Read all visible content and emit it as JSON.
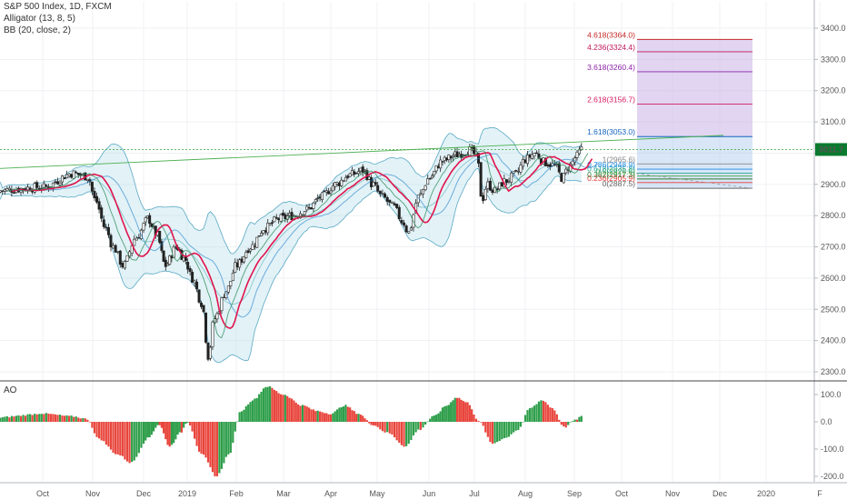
{
  "legend": {
    "symbol": "S&P 500 Index, 1D, FXCM",
    "alligator": "Alligator (13, 8, 5)",
    "bb": "BB (20, close, 2)",
    "ao": "AO"
  },
  "colors": {
    "up": "#26a69a",
    "down": "#ef5350",
    "candle_up": "#2a2a2a",
    "candle_down": "#2a2a2a",
    "bb_fill": "#bfe3ee",
    "bb_line": "#5aa9c4",
    "alligator_red": "#e0144c",
    "alligator_green": "#2e8b57",
    "ao_up": "#2e9e4a",
    "ao_down": "#e8453c",
    "price_line": "#4caf50",
    "price_label_bg": "#0a7a2e"
  },
  "chart_data": [
    {
      "type": "candlestick",
      "title": "S&P 500 Index, 1D, FXCM",
      "x_labels": [
        "Oct",
        "Nov",
        "Dec",
        "2019",
        "Feb",
        "Mar",
        "Apr",
        "May",
        "Jun",
        "Jul",
        "Aug",
        "Sep",
        "Oct",
        "Nov",
        "Dec",
        "2020",
        "F"
      ],
      "y_ticks": [
        "2300.0",
        "2400.0",
        "2500.0",
        "2600.0",
        "2700.0",
        "2800.0",
        "2900.0",
        "3000.0",
        "3100.0",
        "3200.0",
        "3300.0",
        "3400.0"
      ],
      "ylim": [
        2270,
        3440
      ],
      "last_price": "3011.7",
      "price_anchors": [
        {
          "month": 0.0,
          "close": 2890
        },
        {
          "month": 0.6,
          "close": 2935
        },
        {
          "month": 0.9,
          "close": 2925
        },
        {
          "month": 1.05,
          "close": 2850
        },
        {
          "month": 1.25,
          "close": 2760
        },
        {
          "month": 1.4,
          "close": 2700
        },
        {
          "month": 1.6,
          "close": 2640
        },
        {
          "month": 1.85,
          "close": 2730
        },
        {
          "month": 2.1,
          "close": 2790
        },
        {
          "month": 2.3,
          "close": 2740
        },
        {
          "month": 2.5,
          "close": 2640
        },
        {
          "month": 2.75,
          "close": 2700
        },
        {
          "month": 2.95,
          "close": 2660
        },
        {
          "month": 3.1,
          "close": 2600
        },
        {
          "month": 3.3,
          "close": 2520
        },
        {
          "month": 3.43,
          "close": 2350
        },
        {
          "month": 3.55,
          "close": 2470
        },
        {
          "month": 3.8,
          "close": 2560
        },
        {
          "month": 4.0,
          "close": 2640
        },
        {
          "month": 4.3,
          "close": 2700
        },
        {
          "month": 4.6,
          "close": 2760
        },
        {
          "month": 4.9,
          "close": 2790
        },
        {
          "month": 5.2,
          "close": 2800
        },
        {
          "month": 5.5,
          "close": 2820
        },
        {
          "month": 5.8,
          "close": 2860
        },
        {
          "month": 6.1,
          "close": 2900
        },
        {
          "month": 6.4,
          "close": 2930
        },
        {
          "month": 6.7,
          "close": 2945
        },
        {
          "month": 6.9,
          "close": 2900
        },
        {
          "month": 7.1,
          "close": 2860
        },
        {
          "month": 7.3,
          "close": 2830
        },
        {
          "month": 7.5,
          "close": 2780
        },
        {
          "month": 7.6,
          "close": 2745
        },
        {
          "month": 7.8,
          "close": 2860
        },
        {
          "month": 8.0,
          "close": 2920
        },
        {
          "month": 8.3,
          "close": 2975
        },
        {
          "month": 8.6,
          "close": 2995
        },
        {
          "month": 8.9,
          "close": 3010
        },
        {
          "month": 9.05,
          "close": 2990
        },
        {
          "month": 9.15,
          "close": 2850
        },
        {
          "month": 9.25,
          "close": 2900
        },
        {
          "month": 9.4,
          "close": 2880
        },
        {
          "month": 9.6,
          "close": 2910
        },
        {
          "month": 9.8,
          "close": 2930
        },
        {
          "month": 10.0,
          "close": 2980
        },
        {
          "month": 10.2,
          "close": 3000
        },
        {
          "month": 10.4,
          "close": 2970
        },
        {
          "month": 10.6,
          "close": 2960
        },
        {
          "month": 10.75,
          "close": 2920
        },
        {
          "month": 10.9,
          "close": 2960
        },
        {
          "month": 11.05,
          "close": 2990
        },
        {
          "month": 11.15,
          "close": 3011.7
        }
      ],
      "fib_levels": [
        {
          "ratio": "0",
          "label": "0(2887.5)",
          "price": 2887.5,
          "color": "#666666"
        },
        {
          "ratio": "0.236",
          "label": "0.236(2905.9)",
          "price": 2905.9,
          "color": "#e53935"
        },
        {
          "ratio": "0.382",
          "label": "0.382(2917.3)",
          "price": 2917.3,
          "color": "#2e7d32"
        },
        {
          "ratio": "0.5",
          "label": "0.5(2926.6)",
          "price": 2926.6,
          "color": "#43a047"
        },
        {
          "ratio": "0.618",
          "label": "0.618(2935.8)",
          "price": 2935.8,
          "color": "#26a69a"
        },
        {
          "ratio": "0.786",
          "label": "0.786(2948.9)",
          "price": 2948.9,
          "color": "#1e88e5"
        },
        {
          "ratio": "1",
          "label": "1(2965.6)",
          "price": 2965.6,
          "color": "#888888"
        },
        {
          "ratio": "1.618",
          "label": "1.618(3053.0)",
          "price": 3053.0,
          "color": "#1565c0"
        },
        {
          "ratio": "2.618",
          "label": "2.618(3156.7)",
          "price": 3156.7,
          "color": "#d81b60"
        },
        {
          "ratio": "3.618",
          "label": "3.618(3260.4)",
          "price": 3260.4,
          "color": "#8e24aa"
        },
        {
          "ratio": "4.236",
          "label": "4.236(3324.4)",
          "price": 3324.4,
          "color": "#c2185b"
        },
        {
          "ratio": "4.618",
          "label": "4.618(3364.0)",
          "price": 3364.0,
          "color": "#c62828"
        }
      ]
    },
    {
      "type": "bar",
      "title": "AO",
      "y_ticks": [
        "100.0",
        "0.0",
        "-100.0",
        "-200.0"
      ],
      "ylim": [
        -215,
        130
      ],
      "ao_anchors": [
        {
          "month": 0.0,
          "value": 30
        },
        {
          "month": 0.6,
          "value": 20
        },
        {
          "month": 0.9,
          "value": 10
        },
        {
          "month": 1.1,
          "value": -60
        },
        {
          "month": 1.5,
          "value": -120
        },
        {
          "month": 1.75,
          "value": -150
        },
        {
          "month": 2.1,
          "value": -60
        },
        {
          "month": 2.35,
          "value": -10
        },
        {
          "month": 2.6,
          "value": -90
        },
        {
          "month": 2.85,
          "value": -40
        },
        {
          "month": 3.0,
          "value": 0
        },
        {
          "month": 3.3,
          "value": -120
        },
        {
          "month": 3.6,
          "value": -200
        },
        {
          "month": 3.85,
          "value": -120
        },
        {
          "month": 4.1,
          "value": 40
        },
        {
          "month": 4.35,
          "value": 80
        },
        {
          "month": 4.65,
          "value": 130
        },
        {
          "month": 5.0,
          "value": 100
        },
        {
          "month": 5.4,
          "value": 60
        },
        {
          "month": 5.7,
          "value": 40
        },
        {
          "month": 6.0,
          "value": 30
        },
        {
          "month": 6.3,
          "value": 60
        },
        {
          "month": 6.6,
          "value": 30
        },
        {
          "month": 6.9,
          "value": -10
        },
        {
          "month": 7.2,
          "value": -40
        },
        {
          "month": 7.55,
          "value": -90
        },
        {
          "month": 7.8,
          "value": -30
        },
        {
          "month": 8.1,
          "value": 20
        },
        {
          "month": 8.4,
          "value": 60
        },
        {
          "month": 8.6,
          "value": 90
        },
        {
          "month": 8.85,
          "value": 70
        },
        {
          "month": 9.1,
          "value": 0
        },
        {
          "month": 9.35,
          "value": -80
        },
        {
          "month": 9.6,
          "value": -60
        },
        {
          "month": 9.85,
          "value": -30
        },
        {
          "month": 10.1,
          "value": 50
        },
        {
          "month": 10.35,
          "value": 80
        },
        {
          "month": 10.55,
          "value": 50
        },
        {
          "month": 10.8,
          "value": -20
        },
        {
          "month": 11.0,
          "value": 5
        },
        {
          "month": 11.15,
          "value": 20
        }
      ]
    }
  ]
}
